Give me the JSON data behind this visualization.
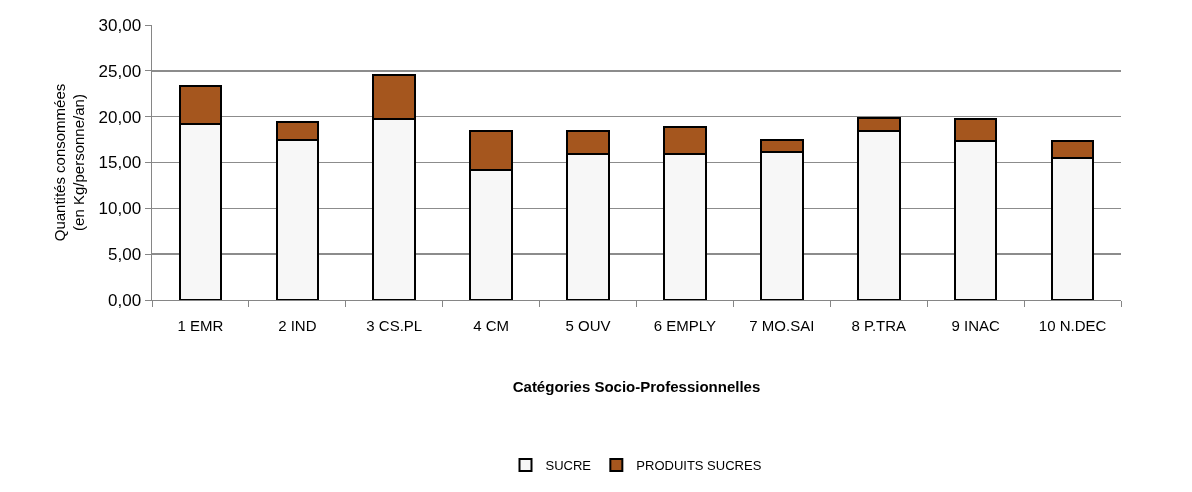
{
  "chart_data": {
    "type": "bar",
    "stacked": true,
    "xlabel": "Catégories Socio-Professionnelles",
    "ylabel": "Quantités consommées\n(en Kg/personne/an)",
    "categories": [
      "1 EMR",
      "2 IND",
      "3 CS.PL",
      "4 CM",
      "5 OUV",
      "6 EMPLY",
      "7 MO.SAI",
      "8 P.TRA",
      "9 INAC",
      "10 N.DEC"
    ],
    "series": [
      {
        "name": "SUCRE",
        "color": "#f7f7f7",
        "values": [
          19.2,
          17.5,
          19.7,
          14.2,
          15.9,
          15.9,
          16.2,
          18.4,
          17.4,
          15.5
        ]
      },
      {
        "name": "PRODUITS SUCRES",
        "color": "#a5561e",
        "values": [
          4.1,
          1.9,
          4.8,
          4.2,
          2.5,
          3.0,
          1.3,
          1.5,
          2.3,
          1.8
        ]
      }
    ],
    "ylim": [
      0,
      30
    ],
    "yticks": [
      {
        "value": 0,
        "label": "0,00"
      },
      {
        "value": 5,
        "label": "5,00"
      },
      {
        "value": 10,
        "label": "10,00"
      },
      {
        "value": 15,
        "label": "15,00"
      },
      {
        "value": 20,
        "label": "20,00"
      },
      {
        "value": 25,
        "label": "25,00"
      },
      {
        "value": 30,
        "label": "30,00"
      }
    ],
    "grid": "y",
    "legend": "bottom"
  }
}
